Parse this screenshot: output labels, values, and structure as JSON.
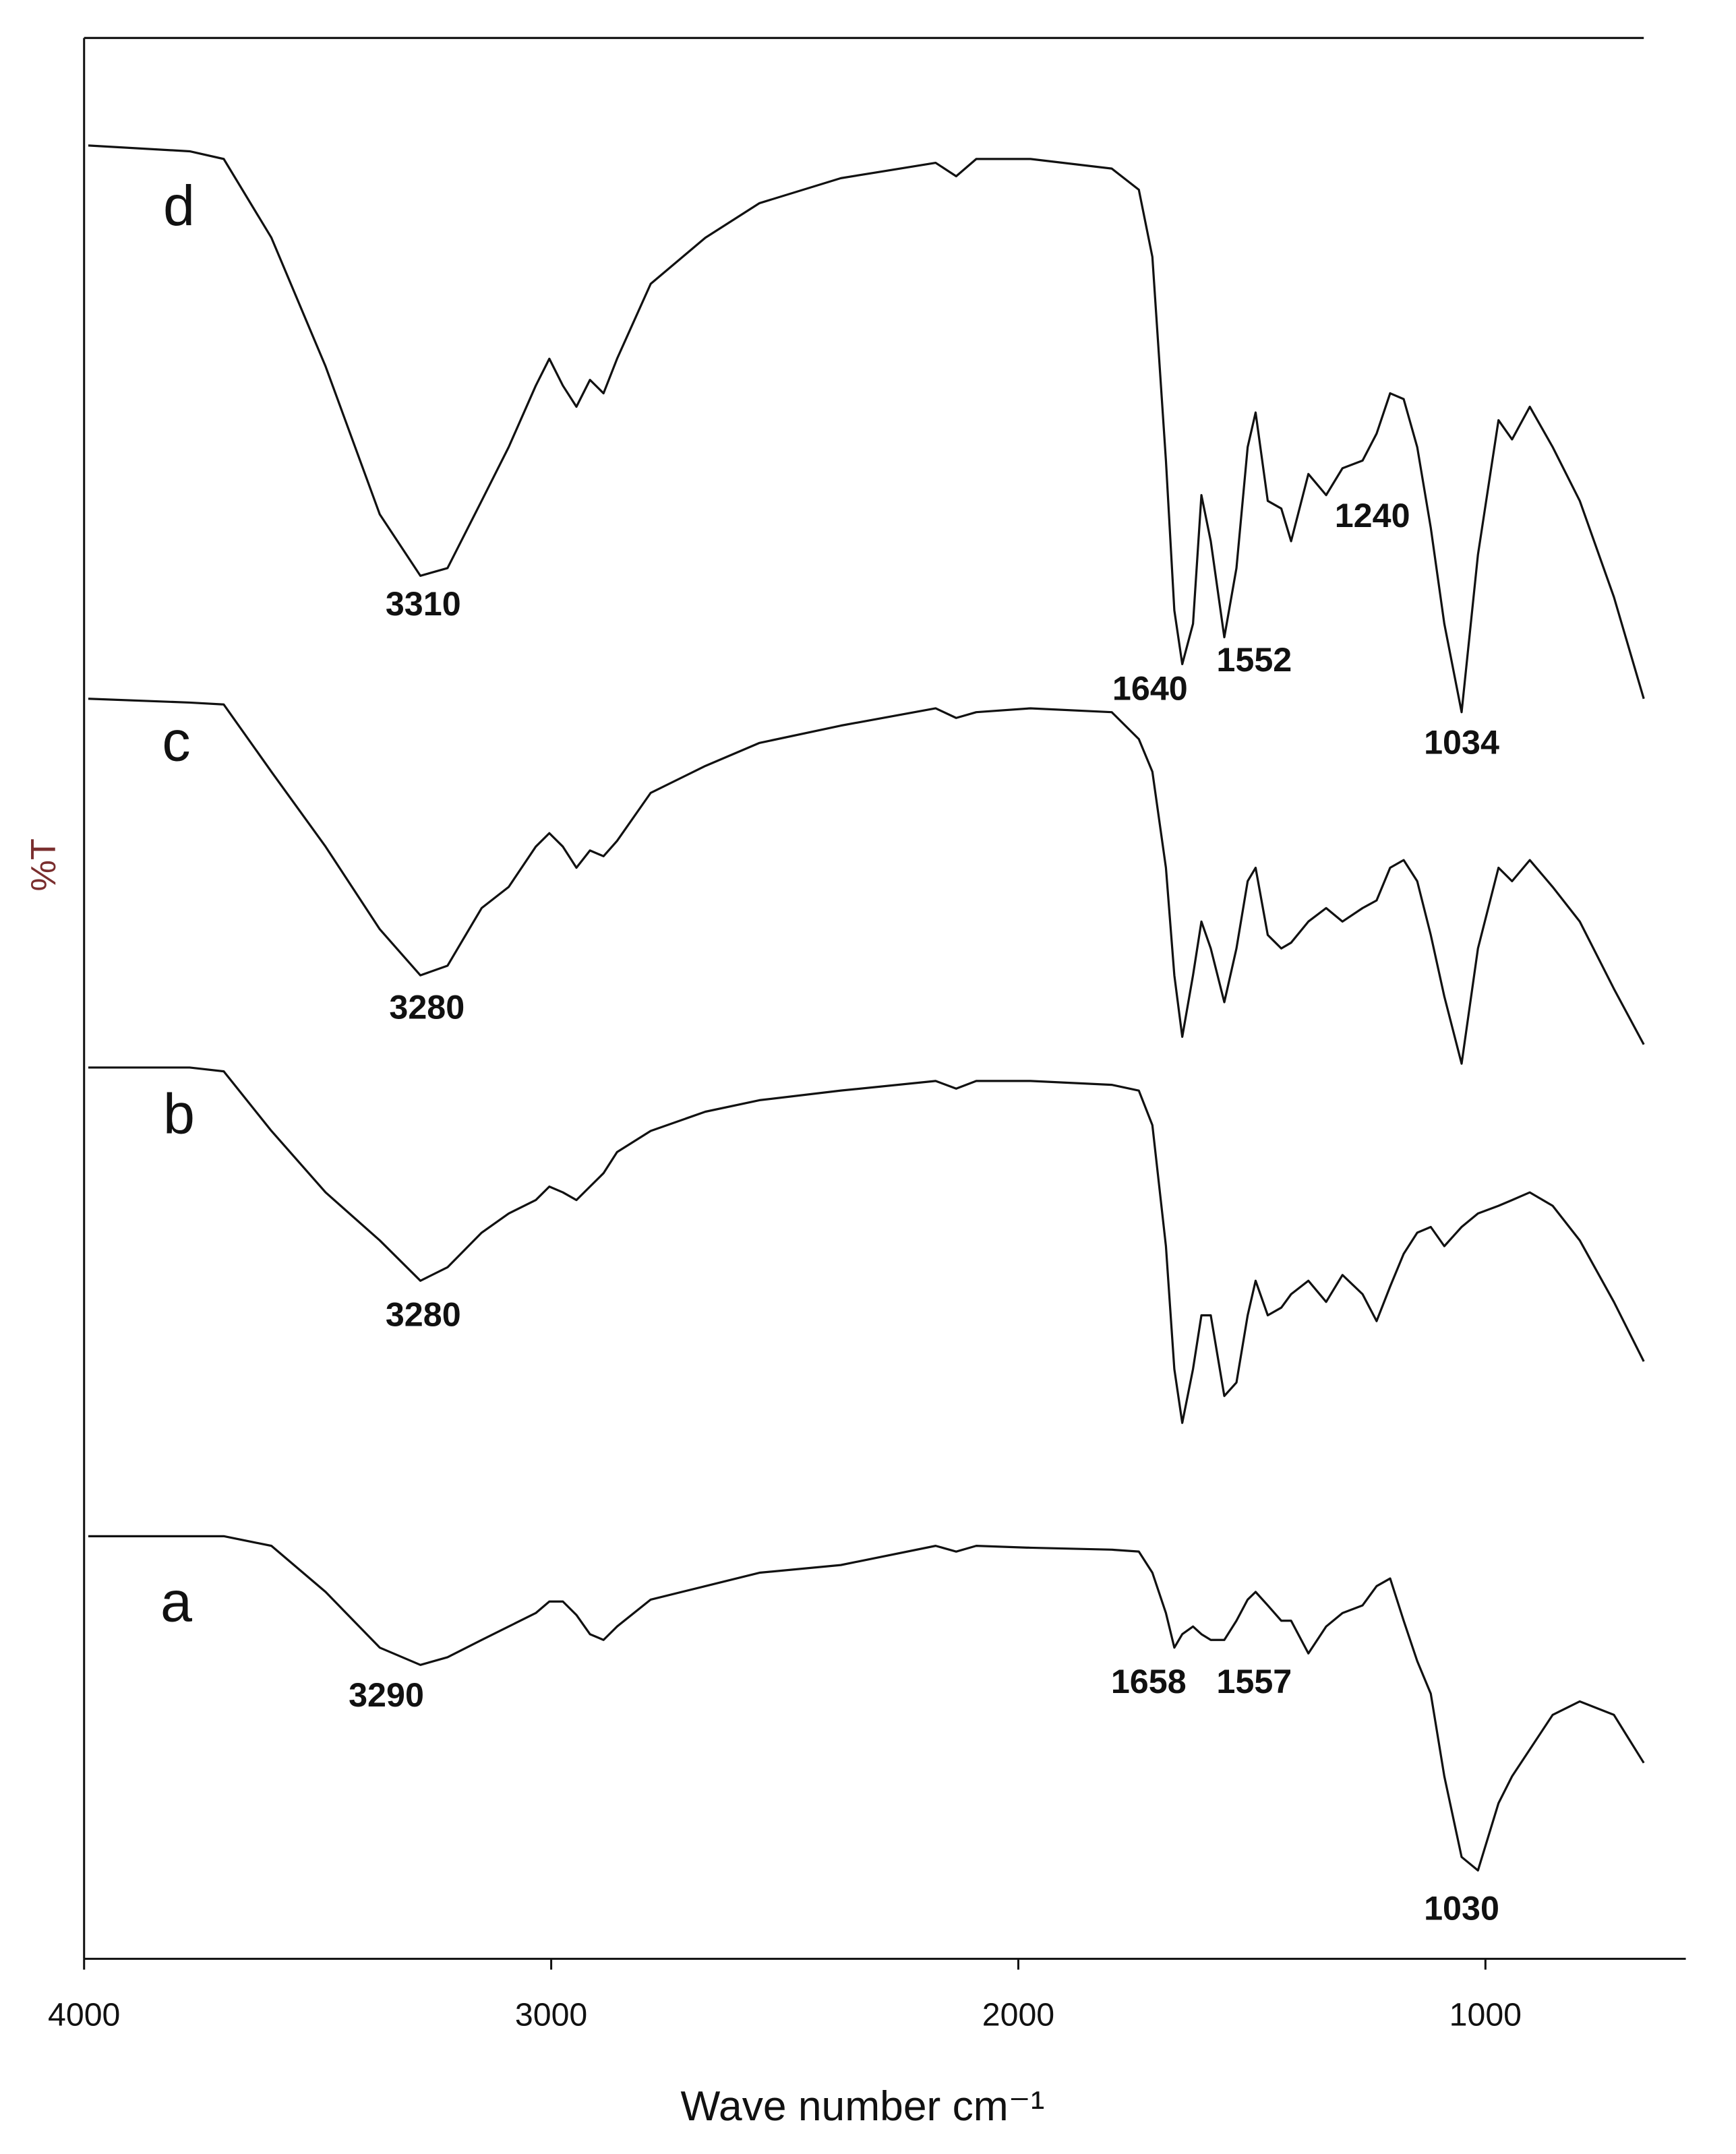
{
  "chart_data": {
    "type": "line",
    "xlabel": "Wave number cm⁻¹",
    "ylabel": "%T",
    "xlim": [
      4000,
      571
    ],
    "xticks": [
      4000,
      3000,
      2000,
      1000
    ],
    "ylim": [
      0,
      100
    ],
    "x": [
      3991,
      3774,
      3701,
      3599,
      3483,
      3367,
      3280,
      3222,
      3149,
      3091,
      3033,
      3004,
      2975,
      2946,
      2917,
      2888,
      2859,
      2787,
      2670,
      2554,
      2380,
      2177,
      2133,
      2090,
      1974,
      1800,
      1742,
      1713,
      1684,
      1666,
      1649,
      1626,
      1608,
      1588,
      1559,
      1533,
      1509,
      1492,
      1466,
      1437,
      1416,
      1379,
      1341,
      1306,
      1263,
      1233,
      1204,
      1175,
      1146,
      1117,
      1088,
      1051,
      1016,
      972,
      943,
      905,
      856,
      798,
      725,
      661
    ],
    "series": [
      {
        "name": "a",
        "color": "#111111",
        "values": [
          22.0,
          22.0,
          22.0,
          21.5,
          19.1,
          16.2,
          15.3,
          15.7,
          16.6,
          17.3,
          18.0,
          18.6,
          18.6,
          17.9,
          16.9,
          16.6,
          17.3,
          18.7,
          19.4,
          20.1,
          20.5,
          21.5,
          21.2,
          21.5,
          21.4,
          21.3,
          21.2,
          20.1,
          18.0,
          16.2,
          16.9,
          17.3,
          16.9,
          16.6,
          16.6,
          17.6,
          18.7,
          19.1,
          18.4,
          17.6,
          17.6,
          15.9,
          17.3,
          18.0,
          18.4,
          19.4,
          19.8,
          17.6,
          15.5,
          13.8,
          9.5,
          5.3,
          4.6,
          8.1,
          9.5,
          10.9,
          12.7,
          13.4,
          12.7,
          10.2
        ]
      },
      {
        "name": "b",
        "color": "#111111",
        "values": [
          46.4,
          46.4,
          46.2,
          43.1,
          39.9,
          37.4,
          35.3,
          36.0,
          37.8,
          38.8,
          39.5,
          40.2,
          39.9,
          39.5,
          40.2,
          40.9,
          42.0,
          43.1,
          44.1,
          44.7,
          45.2,
          45.7,
          45.3,
          45.7,
          45.7,
          45.5,
          45.2,
          43.4,
          37.1,
          30.7,
          27.9,
          30.7,
          33.5,
          33.5,
          29.3,
          30.0,
          33.5,
          35.3,
          33.5,
          33.9,
          34.6,
          35.3,
          34.2,
          35.6,
          34.6,
          33.2,
          35.0,
          36.7,
          37.8,
          38.1,
          37.1,
          38.1,
          38.8,
          39.2,
          39.5,
          39.9,
          39.2,
          37.4,
          34.2,
          31.1
        ]
      },
      {
        "name": "c",
        "color": "#111111",
        "values": [
          65.6,
          65.4,
          65.3,
          61.8,
          57.9,
          53.6,
          51.2,
          51.7,
          54.7,
          55.8,
          57.9,
          58.6,
          57.9,
          56.8,
          57.7,
          57.4,
          58.2,
          60.7,
          62.1,
          63.3,
          64.2,
          65.1,
          64.6,
          64.9,
          65.1,
          64.9,
          63.5,
          61.8,
          56.8,
          51.2,
          48.0,
          51.2,
          54.0,
          52.6,
          49.8,
          52.6,
          56.1,
          56.8,
          53.3,
          52.6,
          52.9,
          54.0,
          54.7,
          54.0,
          54.7,
          55.1,
          56.8,
          57.2,
          56.1,
          53.3,
          50.1,
          46.6,
          52.6,
          56.8,
          56.1,
          57.2,
          55.8,
          54.0,
          50.5,
          47.6
        ]
      },
      {
        "name": "d",
        "color": "#111111",
        "values": [
          94.4,
          94.1,
          93.7,
          89.6,
          82.9,
          75.2,
          72.0,
          72.4,
          75.9,
          78.7,
          81.9,
          83.3,
          81.9,
          80.8,
          82.2,
          81.5,
          83.3,
          87.2,
          89.6,
          91.4,
          92.7,
          93.5,
          92.8,
          93.7,
          93.7,
          93.2,
          92.1,
          88.6,
          78.0,
          70.2,
          67.4,
          69.5,
          76.2,
          73.8,
          68.8,
          72.4,
          78.7,
          80.5,
          75.9,
          75.5,
          73.8,
          77.3,
          76.2,
          77.6,
          78.0,
          79.4,
          81.5,
          81.2,
          78.7,
          74.5,
          69.5,
          64.9,
          73.1,
          80.1,
          79.1,
          80.8,
          78.7,
          75.9,
          70.9,
          65.6
        ]
      }
    ],
    "annotations": [
      {
        "text": "3310",
        "x": 3274,
        "y": 70.4
      },
      {
        "text": "1640",
        "x": 1718,
        "y": 66.0
      },
      {
        "text": "1552",
        "x": 1495,
        "y": 67.5
      },
      {
        "text": "1240",
        "x": 1242,
        "y": 75.0
      },
      {
        "text": "1034",
        "x": 1051,
        "y": 63.2
      },
      {
        "text": "3280",
        "x": 3266,
        "y": 49.4
      },
      {
        "text": "3280",
        "x": 3274,
        "y": 33.4
      },
      {
        "text": "3290",
        "x": 3353,
        "y": 13.6
      },
      {
        "text": "1658",
        "x": 1721,
        "y": 14.3
      },
      {
        "text": "1557",
        "x": 1495,
        "y": 14.3
      },
      {
        "text": "1030",
        "x": 1051,
        "y": 2.5
      }
    ]
  }
}
